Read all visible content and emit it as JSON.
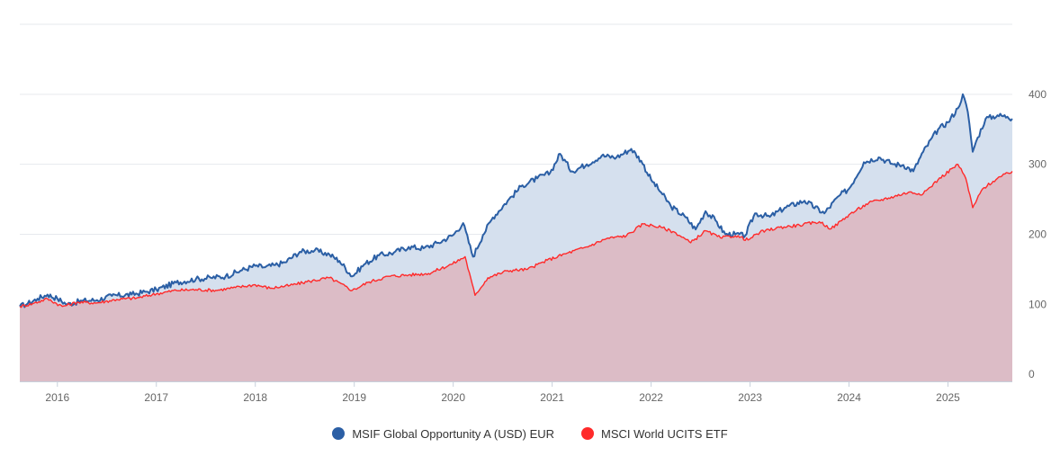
{
  "chart_data": {
    "type": "area",
    "x_ticks": [
      "2016",
      "2017",
      "2018",
      "2019",
      "2020",
      "2021",
      "2022",
      "2023",
      "2024",
      "2025"
    ],
    "y_ticks": [
      0,
      100,
      200,
      300,
      400
    ],
    "xlim": [
      2015.62,
      2025.65
    ],
    "ylim": [
      -10,
      500
    ],
    "grid": true,
    "legend_position": "bottom-center",
    "series": [
      {
        "name": "MSIF Global Opportunity A (USD) EUR",
        "color": "#2b5fa5",
        "fill": "#d5e0ee",
        "points": [
          [
            2015.62,
            97
          ],
          [
            2015.7,
            101
          ],
          [
            2015.8,
            108
          ],
          [
            2015.9,
            114
          ],
          [
            2016.0,
            108
          ],
          [
            2016.1,
            100
          ],
          [
            2016.25,
            105
          ],
          [
            2016.4,
            106
          ],
          [
            2016.55,
            112
          ],
          [
            2016.75,
            114
          ],
          [
            2016.9,
            118
          ],
          [
            2017.0,
            121
          ],
          [
            2017.2,
            131
          ],
          [
            2017.4,
            136
          ],
          [
            2017.55,
            138
          ],
          [
            2017.7,
            140
          ],
          [
            2017.85,
            148
          ],
          [
            2018.0,
            155
          ],
          [
            2018.1,
            153
          ],
          [
            2018.2,
            156
          ],
          [
            2018.3,
            160
          ],
          [
            2018.45,
            175
          ],
          [
            2018.6,
            177
          ],
          [
            2018.75,
            171
          ],
          [
            2018.85,
            162
          ],
          [
            2018.98,
            140
          ],
          [
            2019.1,
            157
          ],
          [
            2019.25,
            170
          ],
          [
            2019.4,
            174
          ],
          [
            2019.55,
            182
          ],
          [
            2019.7,
            180
          ],
          [
            2019.85,
            188
          ],
          [
            2020.0,
            199
          ],
          [
            2020.1,
            216
          ],
          [
            2020.2,
            168
          ],
          [
            2020.3,
            199
          ],
          [
            2020.4,
            224
          ],
          [
            2020.55,
            248
          ],
          [
            2020.7,
            270
          ],
          [
            2020.85,
            280
          ],
          [
            2020.98,
            288
          ],
          [
            2021.08,
            315
          ],
          [
            2021.2,
            290
          ],
          [
            2021.35,
            300
          ],
          [
            2021.5,
            312
          ],
          [
            2021.65,
            310
          ],
          [
            2021.8,
            322
          ],
          [
            2021.9,
            305
          ],
          [
            2022.0,
            278
          ],
          [
            2022.1,
            260
          ],
          [
            2022.2,
            240
          ],
          [
            2022.35,
            224
          ],
          [
            2022.45,
            207
          ],
          [
            2022.55,
            233
          ],
          [
            2022.65,
            220
          ],
          [
            2022.75,
            200
          ],
          [
            2022.85,
            200
          ],
          [
            2022.95,
            198
          ],
          [
            2023.05,
            230
          ],
          [
            2023.2,
            225
          ],
          [
            2023.35,
            238
          ],
          [
            2023.55,
            248
          ],
          [
            2023.75,
            230
          ],
          [
            2023.9,
            255
          ],
          [
            2024.0,
            265
          ],
          [
            2024.15,
            303
          ],
          [
            2024.3,
            310
          ],
          [
            2024.45,
            300
          ],
          [
            2024.55,
            299
          ],
          [
            2024.65,
            290
          ],
          [
            2024.75,
            318
          ],
          [
            2024.9,
            350
          ],
          [
            2025.0,
            360
          ],
          [
            2025.1,
            380
          ],
          [
            2025.15,
            400
          ],
          [
            2025.2,
            375
          ],
          [
            2025.25,
            318
          ],
          [
            2025.3,
            338
          ],
          [
            2025.38,
            365
          ],
          [
            2025.5,
            370
          ],
          [
            2025.6,
            368
          ],
          [
            2025.65,
            365
          ]
        ]
      },
      {
        "name": "MSCI World UCITS ETF",
        "color": "#ff2a2a",
        "fill": "#dcbcc6",
        "points": [
          [
            2015.62,
            97
          ],
          [
            2015.75,
            101
          ],
          [
            2015.9,
            108
          ],
          [
            2016.05,
            97
          ],
          [
            2016.2,
            103
          ],
          [
            2016.4,
            102
          ],
          [
            2016.6,
            107
          ],
          [
            2016.8,
            109
          ],
          [
            2017.0,
            115
          ],
          [
            2017.2,
            120
          ],
          [
            2017.4,
            121
          ],
          [
            2017.6,
            120
          ],
          [
            2017.8,
            124
          ],
          [
            2018.0,
            128
          ],
          [
            2018.15,
            123
          ],
          [
            2018.35,
            127
          ],
          [
            2018.55,
            133
          ],
          [
            2018.75,
            138
          ],
          [
            2018.98,
            120
          ],
          [
            2019.15,
            132
          ],
          [
            2019.35,
            140
          ],
          [
            2019.55,
            142
          ],
          [
            2019.75,
            144
          ],
          [
            2019.98,
            157
          ],
          [
            2020.12,
            168
          ],
          [
            2020.22,
            113
          ],
          [
            2020.35,
            138
          ],
          [
            2020.55,
            148
          ],
          [
            2020.75,
            150
          ],
          [
            2020.95,
            163
          ],
          [
            2021.15,
            173
          ],
          [
            2021.35,
            182
          ],
          [
            2021.55,
            194
          ],
          [
            2021.75,
            198
          ],
          [
            2021.92,
            215
          ],
          [
            2022.1,
            210
          ],
          [
            2022.25,
            202
          ],
          [
            2022.4,
            188
          ],
          [
            2022.55,
            205
          ],
          [
            2022.7,
            195
          ],
          [
            2022.85,
            198
          ],
          [
            2022.98,
            192
          ],
          [
            2023.1,
            203
          ],
          [
            2023.3,
            210
          ],
          [
            2023.5,
            213
          ],
          [
            2023.7,
            218
          ],
          [
            2023.82,
            208
          ],
          [
            2024.0,
            228
          ],
          [
            2024.2,
            245
          ],
          [
            2024.4,
            252
          ],
          [
            2024.6,
            260
          ],
          [
            2024.75,
            258
          ],
          [
            2024.9,
            278
          ],
          [
            2025.05,
            295
          ],
          [
            2025.1,
            300
          ],
          [
            2025.18,
            280
          ],
          [
            2025.25,
            238
          ],
          [
            2025.35,
            265
          ],
          [
            2025.5,
            280
          ],
          [
            2025.65,
            290
          ]
        ]
      }
    ]
  }
}
